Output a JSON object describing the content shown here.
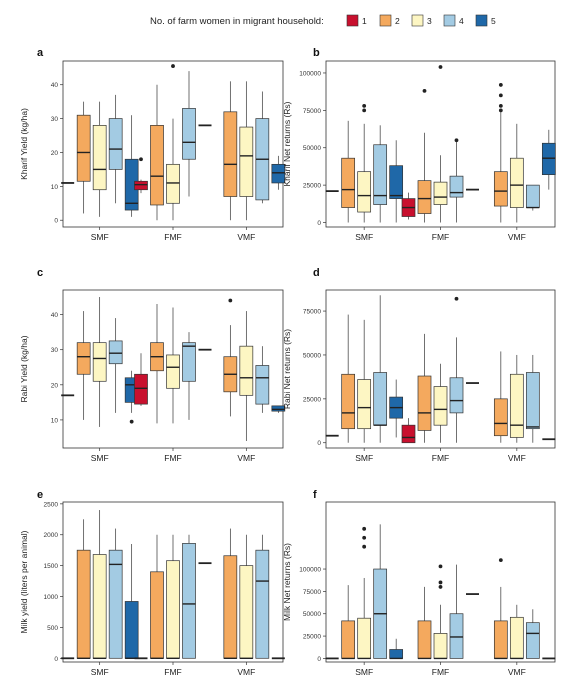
{
  "legend": {
    "title": "No. of farm women in migrant household:",
    "items": [
      {
        "label": "1",
        "color": "#c8102e"
      },
      {
        "label": "2",
        "color": "#f4a95e"
      },
      {
        "label": "3",
        "color": "#fdf6c3"
      },
      {
        "label": "4",
        "color": "#a3cbe3"
      },
      {
        "label": "5",
        "color": "#1f68a8"
      }
    ]
  },
  "chart_data": [
    {
      "panel": "a",
      "type": "box",
      "ylabel": "Kharif Yield (kg/ha)",
      "categories": [
        "SMF",
        "FMF",
        "VMF"
      ],
      "ylim": [
        -2,
        47
      ],
      "yticks": [
        0,
        10,
        20,
        30,
        40
      ],
      "yticklabels": [
        "0",
        "10",
        "20",
        "30",
        "40"
      ],
      "groups": [
        [
          {
            "s": 1,
            "line": 11
          },
          {
            "s": 2,
            "min": 2,
            "q1": 11.5,
            "med": 20,
            "q3": 31,
            "max": 35
          },
          {
            "s": 3,
            "min": 1,
            "q1": 9,
            "med": 15,
            "q3": 28,
            "max": 35
          },
          {
            "s": 4,
            "min": 5,
            "q1": 15,
            "med": 21,
            "q3": 30,
            "max": 37
          },
          {
            "s": 5,
            "min": 1,
            "q1": 3,
            "med": 5,
            "q3": 18,
            "max": 31
          }
        ],
        [
          {
            "s": 1,
            "min": 8,
            "q1": 9,
            "med": 10.5,
            "q3": 11.5,
            "max": 12,
            "out": [
              18
            ]
          },
          {
            "s": 2,
            "min": 0,
            "q1": 4.5,
            "med": 13,
            "q3": 28,
            "max": 40
          },
          {
            "s": 3,
            "min": 0,
            "q1": 5,
            "med": 11,
            "q3": 16.5,
            "max": 30,
            "out": [
              45.5
            ]
          },
          {
            "s": 4,
            "min": 7,
            "q1": 18,
            "med": 23,
            "q3": 33,
            "max": 44
          },
          {
            "s": 5,
            "line": 28
          }
        ],
        [
          {
            "s": 2,
            "min": 0,
            "q1": 7,
            "med": 16.5,
            "q3": 32,
            "max": 41
          },
          {
            "s": 3,
            "min": 0,
            "q1": 7,
            "med": 19,
            "q3": 27.5,
            "max": 41
          },
          {
            "s": 4,
            "min": 5,
            "q1": 6,
            "med": 18,
            "q3": 30,
            "max": 38
          },
          {
            "s": 5,
            "min": 9,
            "q1": 11,
            "med": 14,
            "q3": 16.5,
            "max": 19
          }
        ]
      ]
    },
    {
      "panel": "b",
      "type": "box",
      "ylabel": "Kharif Net returns (Rs)",
      "categories": [
        "SMF",
        "FMF",
        "VMF"
      ],
      "ylim": [
        -3000,
        108000
      ],
      "yticks": [
        0,
        25000,
        50000,
        75000,
        100000
      ],
      "yticklabels": [
        "0",
        "25000",
        "50000",
        "75000",
        "100000"
      ],
      "groups": [
        [
          {
            "s": 1,
            "line": 21000
          },
          {
            "s": 2,
            "min": 0,
            "q1": 10000,
            "med": 22000,
            "q3": 43000,
            "max": 68000
          },
          {
            "s": 3,
            "min": 0,
            "q1": 7000,
            "med": 18000,
            "q3": 34000,
            "max": 66000,
            "out": [
              78000,
              75000
            ]
          },
          {
            "s": 4,
            "min": 0,
            "q1": 12000,
            "med": 18000,
            "q3": 52000,
            "max": 65000
          },
          {
            "s": 5,
            "min": 0,
            "q1": 16000,
            "med": 18000,
            "q3": 38000,
            "max": 55000
          }
        ],
        [
          {
            "s": 1,
            "min": 2000,
            "q1": 4000,
            "med": 10000,
            "q3": 16000,
            "max": 20000
          },
          {
            "s": 2,
            "min": 0,
            "q1": 6000,
            "med": 16000,
            "q3": 28000,
            "max": 60000,
            "out": [
              88000
            ]
          },
          {
            "s": 3,
            "min": 0,
            "q1": 12000,
            "med": 17000,
            "q3": 27000,
            "max": 45000,
            "out": [
              104000
            ]
          },
          {
            "s": 4,
            "min": 0,
            "q1": 17000,
            "med": 20000,
            "q3": 31000,
            "max": 55000,
            "out": [
              55000
            ]
          },
          {
            "s": 5,
            "line": 22000
          }
        ],
        [
          {
            "s": 2,
            "min": 0,
            "q1": 11000,
            "med": 21000,
            "q3": 34000,
            "max": 75000,
            "out": [
              92000,
              85000,
              78000,
              75000
            ]
          },
          {
            "s": 3,
            "min": 0,
            "q1": 10000,
            "med": 25000,
            "q3": 43000,
            "max": 66000
          },
          {
            "s": 4,
            "min": 8000,
            "q1": 10000,
            "med": 10000,
            "q3": 25000,
            "max": 25000
          },
          {
            "s": 5,
            "min": 22000,
            "q1": 32000,
            "med": 43000,
            "q3": 53000,
            "max": 62000
          }
        ]
      ]
    },
    {
      "panel": "c",
      "type": "box",
      "ylabel": "Rabi Yield (kg/ha)",
      "categories": [
        "SMF",
        "FMF",
        "VMF"
      ],
      "ylim": [
        2,
        47
      ],
      "yticks": [
        10,
        20,
        30,
        40
      ],
      "yticklabels": [
        "10",
        "20",
        "30",
        "40"
      ],
      "groups": [
        [
          {
            "s": 1,
            "line": 17
          },
          {
            "s": 2,
            "min": 10,
            "q1": 23,
            "med": 28,
            "q3": 32,
            "max": 41
          },
          {
            "s": 3,
            "min": 8,
            "q1": 21,
            "med": 27.5,
            "q3": 32,
            "max": 45
          },
          {
            "s": 4,
            "min": 12,
            "q1": 26,
            "med": 29,
            "q3": 32.5,
            "max": 39
          },
          {
            "s": 5,
            "min": 12,
            "q1": 15,
            "med": 20,
            "q3": 22,
            "max": 24,
            "out": [
              9.5
            ]
          }
        ],
        [
          {
            "s": 1,
            "min": 14,
            "q1": 14.5,
            "med": 19,
            "q3": 23,
            "max": 29
          },
          {
            "s": 2,
            "min": 9,
            "q1": 24,
            "med": 28,
            "q3": 32,
            "max": 43
          },
          {
            "s": 3,
            "min": 9,
            "q1": 19,
            "med": 25,
            "q3": 28.5,
            "max": 42
          },
          {
            "s": 4,
            "min": 10,
            "q1": 21,
            "med": 31,
            "q3": 32,
            "max": 35
          },
          {
            "s": 5,
            "line": 30
          }
        ],
        [
          {
            "s": 2,
            "min": 11,
            "q1": 18,
            "med": 23,
            "q3": 28,
            "max": 37,
            "out": [
              44
            ]
          },
          {
            "s": 3,
            "min": 4,
            "q1": 17,
            "med": 22,
            "q3": 31,
            "max": 41
          },
          {
            "s": 4,
            "min": 12,
            "q1": 14.5,
            "med": 22,
            "q3": 25.5,
            "max": 31
          },
          {
            "s": 5,
            "min": 12,
            "q1": 12.5,
            "med": 13,
            "q3": 14,
            "max": 14
          }
        ]
      ]
    },
    {
      "panel": "d",
      "type": "box",
      "ylabel": "Rabi Net returns (Rs)",
      "categories": [
        "SMF",
        "FMF",
        "VMF"
      ],
      "ylim": [
        -3000,
        87000
      ],
      "yticks": [
        0,
        25000,
        50000,
        75000
      ],
      "yticklabels": [
        "0",
        "25000",
        "50000",
        "75000"
      ],
      "groups": [
        [
          {
            "s": 1,
            "line": 4000
          },
          {
            "s": 2,
            "min": 0,
            "q1": 8000,
            "med": 17000,
            "q3": 39000,
            "max": 73000
          },
          {
            "s": 3,
            "min": 0,
            "q1": 8000,
            "med": 20000,
            "q3": 36000,
            "max": 70000
          },
          {
            "s": 4,
            "min": 0,
            "q1": 10000,
            "med": 10000,
            "q3": 40000,
            "max": 84000
          },
          {
            "s": 5,
            "min": 3000,
            "q1": 14000,
            "med": 20000,
            "q3": 26000,
            "max": 36000
          }
        ],
        [
          {
            "s": 1,
            "min": 0,
            "q1": 0,
            "med": 3000,
            "q3": 10000,
            "max": 14000
          },
          {
            "s": 2,
            "min": 0,
            "q1": 7000,
            "med": 17000,
            "q3": 38000,
            "max": 62000
          },
          {
            "s": 3,
            "min": 0,
            "q1": 10000,
            "med": 19000,
            "q3": 32000,
            "max": 45000
          },
          {
            "s": 4,
            "min": 0,
            "q1": 17000,
            "med": 24000,
            "q3": 37000,
            "max": 60000,
            "out": [
              82000
            ]
          },
          {
            "s": 5,
            "line": 34000
          }
        ],
        [
          {
            "s": 2,
            "min": 0,
            "q1": 4000,
            "med": 11000,
            "q3": 25000,
            "max": 52000
          },
          {
            "s": 3,
            "min": 0,
            "q1": 3000,
            "med": 10000,
            "q3": 39000,
            "max": 50000
          },
          {
            "s": 4,
            "min": 0,
            "q1": 8000,
            "med": 9000,
            "q3": 40000,
            "max": 50000
          },
          {
            "s": 5,
            "line": 2000
          }
        ]
      ]
    },
    {
      "panel": "e",
      "type": "box",
      "ylabel": "Milk yield (liters per animal)",
      "categories": [
        "SMF",
        "FMF",
        "VMF"
      ],
      "ylim": [
        -60,
        2530
      ],
      "yticks": [
        0,
        500,
        1000,
        1500,
        2000,
        2500
      ],
      "yticklabels": [
        "0",
        "500",
        "1000",
        "1500",
        "2000",
        "2500"
      ],
      "groups": [
        [
          {
            "s": 1,
            "line": 0
          },
          {
            "s": 2,
            "min": 0,
            "q1": 0,
            "med": 0,
            "q3": 1750,
            "max": 2250
          },
          {
            "s": 3,
            "min": 0,
            "q1": 0,
            "med": 0,
            "q3": 1680,
            "max": 2400
          },
          {
            "s": 4,
            "min": 0,
            "q1": 0,
            "med": 1520,
            "q3": 1750,
            "max": 2100
          },
          {
            "s": 5,
            "min": 0,
            "q1": 0,
            "med": 0,
            "q3": 920,
            "max": 1850
          }
        ],
        [
          {
            "s": 1,
            "line": 0
          },
          {
            "s": 2,
            "min": 0,
            "q1": 0,
            "med": 0,
            "q3": 1400,
            "max": 2000
          },
          {
            "s": 3,
            "min": 0,
            "q1": 0,
            "med": 0,
            "q3": 1580,
            "max": 2000
          },
          {
            "s": 4,
            "min": 0,
            "q1": 0,
            "med": 880,
            "q3": 1860,
            "max": 2000
          },
          {
            "s": 5,
            "line": 1540
          }
        ],
        [
          {
            "s": 2,
            "min": 0,
            "q1": 0,
            "med": 0,
            "q3": 1660,
            "max": 2100
          },
          {
            "s": 3,
            "min": 0,
            "q1": 0,
            "med": 0,
            "q3": 1500,
            "max": 2000
          },
          {
            "s": 4,
            "min": 0,
            "q1": 0,
            "med": 1250,
            "q3": 1750,
            "max": 2000
          },
          {
            "s": 5,
            "line": 0
          }
        ]
      ]
    },
    {
      "panel": "f",
      "type": "box",
      "ylabel": "Milk Net returns (Rs)",
      "categories": [
        "SMF",
        "FMF",
        "VMF"
      ],
      "ylim": [
        -4000,
        175000
      ],
      "yticks": [
        0,
        25000,
        50000,
        75000,
        100000
      ],
      "yticklabels": [
        "0",
        "25000",
        "50000",
        "75000",
        "100000"
      ],
      "groups": [
        [
          {
            "s": 1,
            "line": 0
          },
          {
            "s": 2,
            "min": 0,
            "q1": 0,
            "med": 0,
            "q3": 42000,
            "max": 82000
          },
          {
            "s": 3,
            "min": 0,
            "q1": 0,
            "med": 0,
            "q3": 45000,
            "max": 90000,
            "out": [
              145000,
              135000,
              125000
            ]
          },
          {
            "s": 4,
            "min": 0,
            "q1": 0,
            "med": 50000,
            "q3": 100000,
            "max": 150000
          },
          {
            "s": 5,
            "min": 0,
            "q1": 0,
            "med": 0,
            "q3": 10000,
            "max": 22000
          }
        ],
        [
          {
            "s": 2,
            "min": 0,
            "q1": 0,
            "med": 0,
            "q3": 42000,
            "max": 80000
          },
          {
            "s": 3,
            "min": 0,
            "q1": 0,
            "med": 0,
            "q3": 28000,
            "max": 60000,
            "out": [
              103000,
              85000,
              80000
            ]
          },
          {
            "s": 4,
            "min": 0,
            "q1": 0,
            "med": 24000,
            "q3": 50000,
            "max": 105000
          },
          {
            "s": 5,
            "line": 72000
          }
        ],
        [
          {
            "s": 2,
            "min": 0,
            "q1": 0,
            "med": 0,
            "q3": 42000,
            "max": 80000,
            "out": [
              110000
            ]
          },
          {
            "s": 3,
            "min": 0,
            "q1": 0,
            "med": 0,
            "q3": 46000,
            "max": 60000
          },
          {
            "s": 4,
            "min": 0,
            "q1": 0,
            "med": 28000,
            "q3": 40000,
            "max": 55000
          },
          {
            "s": 5,
            "line": 0
          }
        ]
      ]
    }
  ]
}
